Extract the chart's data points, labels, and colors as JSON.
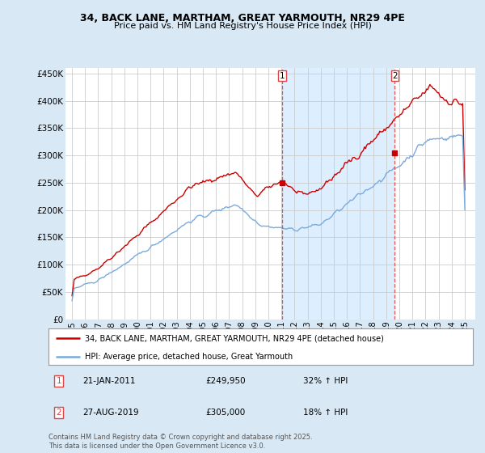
{
  "title_line1": "34, BACK LANE, MARTHAM, GREAT YARMOUTH, NR29 4PE",
  "title_line2": "Price paid vs. HM Land Registry's House Price Index (HPI)",
  "bg_color": "#d8e8f5",
  "plot_bg_color": "#ffffff",
  "fill_between_color": "#ddeeff",
  "red_line_color": "#cc0000",
  "blue_line_color": "#7aaadd",
  "vline_color": "#dd4444",
  "vline1_year": 2011.055,
  "vline2_year": 2019.655,
  "ylim_min": 0,
  "ylim_max": 460000,
  "yticks": [
    0,
    50000,
    100000,
    150000,
    200000,
    250000,
    300000,
    350000,
    400000,
    450000
  ],
  "ytick_labels": [
    "£0",
    "£50K",
    "£100K",
    "£150K",
    "£200K",
    "£250K",
    "£300K",
    "£350K",
    "£400K",
    "£450K"
  ],
  "xlim_min": 1994.5,
  "xlim_max": 2025.8,
  "xticks": [
    1995,
    1996,
    1997,
    1998,
    1999,
    2000,
    2001,
    2002,
    2003,
    2004,
    2005,
    2006,
    2007,
    2008,
    2009,
    2010,
    2011,
    2012,
    2013,
    2014,
    2015,
    2016,
    2017,
    2018,
    2019,
    2020,
    2021,
    2022,
    2023,
    2024,
    2025
  ],
  "legend_red": "34, BACK LANE, MARTHAM, GREAT YARMOUTH, NR29 4PE (detached house)",
  "legend_blue": "HPI: Average price, detached house, Great Yarmouth",
  "annotation1_label": "1",
  "annotation1_date": "21-JAN-2011",
  "annotation1_price": "£249,950",
  "annotation1_hpi": "32% ↑ HPI",
  "annotation2_label": "2",
  "annotation2_date": "27-AUG-2019",
  "annotation2_price": "£305,000",
  "annotation2_hpi": "18% ↑ HPI",
  "footer": "Contains HM Land Registry data © Crown copyright and database right 2025.\nThis data is licensed under the Open Government Licence v3.0.",
  "marker1_x": 2011.055,
  "marker1_y": 249950,
  "marker2_x": 2019.655,
  "marker2_y": 305000,
  "grid_color": "#cccccc"
}
